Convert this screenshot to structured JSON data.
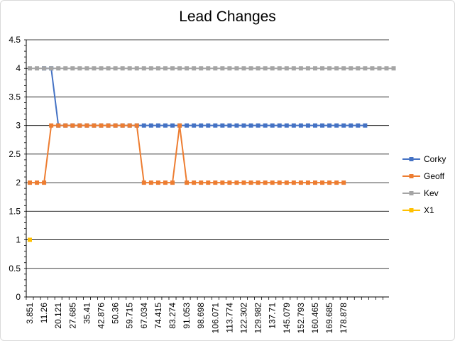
{
  "chart_data": {
    "type": "line",
    "title": "Lead Changes",
    "xlabel": "",
    "ylabel": "",
    "ylim": [
      0,
      4.5
    ],
    "yticks": [
      "0",
      "0.5",
      "1",
      "1.5",
      "2",
      "2.5",
      "3",
      "3.5",
      "4",
      "4.5"
    ],
    "grid": true,
    "legend_position": "right",
    "x_tick_labels": [
      "3.851",
      "11.26",
      "20.121",
      "27.685",
      "35.41",
      "42.876",
      "50.36",
      "59.715",
      "67.034",
      "74.415",
      "83.274",
      "91.053",
      "98.698",
      "106.071",
      "113.774",
      "122.302",
      "129.982",
      "137.71",
      "145.079",
      "152.793",
      "160.465",
      "169.685",
      "178.878"
    ],
    "series": [
      {
        "name": "Corky",
        "color": "#4472c4",
        "marker": "square",
        "values": [
          null,
          null,
          4,
          4,
          3,
          3,
          3,
          3,
          3,
          3,
          3,
          3,
          3,
          3,
          3,
          3,
          3,
          3,
          3,
          3,
          3,
          3,
          3,
          3,
          3,
          3,
          3,
          3,
          3,
          3,
          3,
          3,
          3,
          3,
          3,
          3,
          3,
          3,
          3,
          3,
          3,
          3,
          3,
          3,
          3,
          3,
          3,
          3,
          null,
          null,
          null,
          null
        ]
      },
      {
        "name": "Geoff",
        "color": "#ed7d31",
        "marker": "square",
        "values": [
          2,
          2,
          2,
          3,
          3,
          3,
          3,
          3,
          3,
          3,
          3,
          3,
          3,
          3,
          3,
          3,
          2,
          2,
          2,
          2,
          2,
          3,
          2,
          2,
          2,
          2,
          2,
          2,
          2,
          2,
          2,
          2,
          2,
          2,
          2,
          2,
          2,
          2,
          2,
          2,
          2,
          2,
          2,
          2,
          2,
          null,
          null,
          null,
          null,
          null,
          null,
          null
        ]
      },
      {
        "name": "Kev",
        "color": "#a5a5a5",
        "marker": "square",
        "values": [
          4,
          4,
          4,
          4,
          4,
          4,
          4,
          4,
          4,
          4,
          4,
          4,
          4,
          4,
          4,
          4,
          4,
          4,
          4,
          4,
          4,
          4,
          4,
          4,
          4,
          4,
          4,
          4,
          4,
          4,
          4,
          4,
          4,
          4,
          4,
          4,
          4,
          4,
          4,
          4,
          4,
          4,
          4,
          4,
          4,
          4,
          4,
          4,
          4,
          4,
          4,
          4
        ]
      },
      {
        "name": "X1",
        "color": "#ffc000",
        "marker": "square",
        "values": [
          1,
          null,
          null,
          null,
          null,
          null,
          null,
          null,
          null,
          null,
          null,
          null,
          null,
          null,
          null,
          null,
          null,
          null,
          null,
          null,
          null,
          null,
          null,
          null,
          null,
          null,
          null,
          null,
          null,
          null,
          null,
          null,
          null,
          null,
          null,
          null,
          null,
          null,
          null,
          null,
          null,
          null,
          null,
          null,
          null,
          null,
          null,
          null,
          null,
          null,
          null,
          null
        ]
      }
    ]
  }
}
